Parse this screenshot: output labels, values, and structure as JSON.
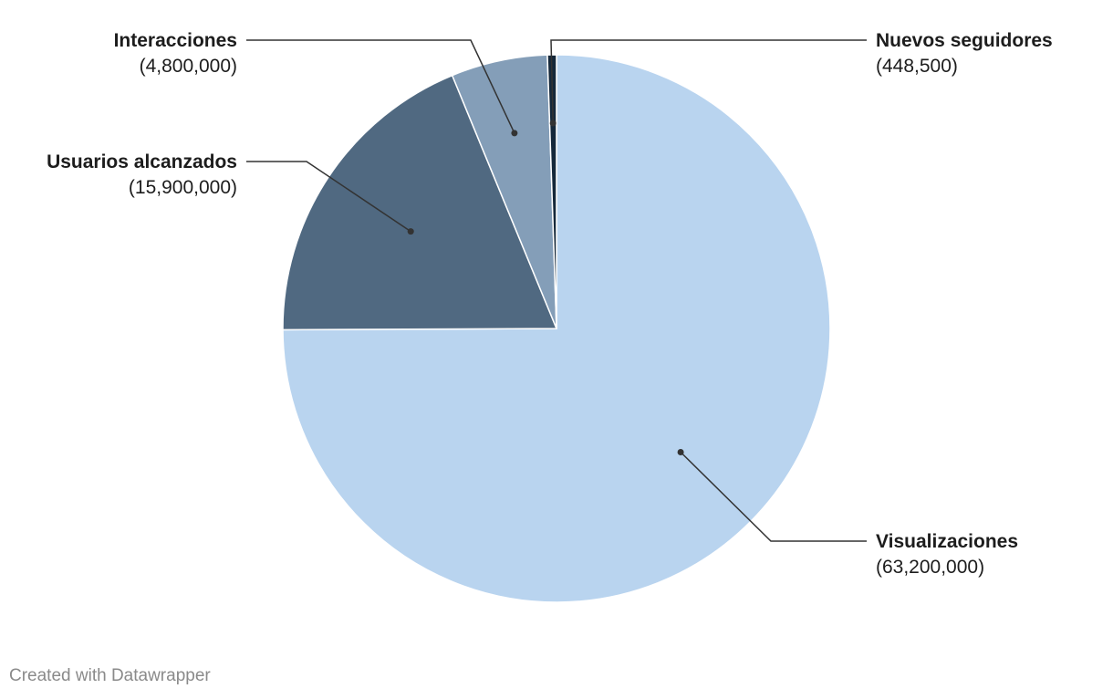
{
  "chart_data": {
    "type": "pie",
    "title": "",
    "start": "top",
    "direction": "clockwise",
    "slices": [
      {
        "label": "Visualizaciones",
        "value": 63200000,
        "value_label": "(63,200,000)",
        "color": "#b9d4ef"
      },
      {
        "label": "Usuarios alcanzados",
        "value": 15900000,
        "value_label": "(15,900,000)",
        "color": "#506981"
      },
      {
        "label": "Interacciones",
        "value": 4800000,
        "value_label": "(4,800,000)",
        "color": "#849eb8"
      },
      {
        "label": "Nuevos seguidores",
        "value": 448500,
        "value_label": "(448,500)",
        "color": "#15283a"
      }
    ]
  },
  "footer": {
    "credit": "Created with Datawrapper"
  }
}
